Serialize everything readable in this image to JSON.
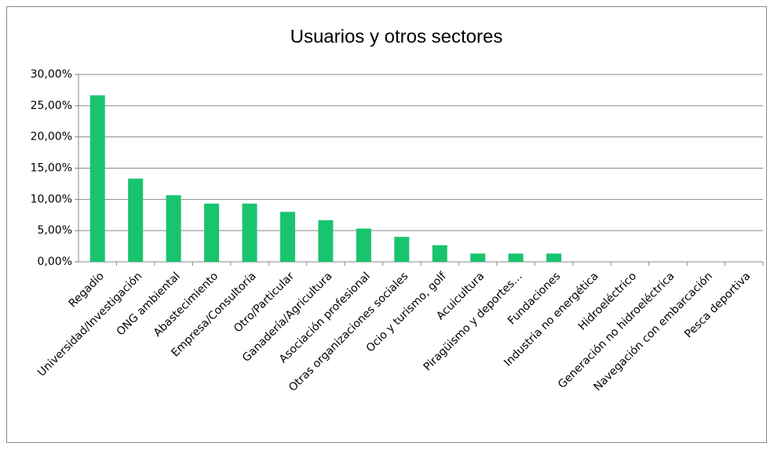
{
  "chart_data": {
    "type": "bar",
    "title": "Usuarios y otros sectores",
    "categories": [
      "Regadío",
      "Universidad/Investigación",
      "ONG ambiental",
      "Abastecimiento",
      "Empresa/Consultoría",
      "Otro/Particular",
      "Ganadería/Agricultura",
      "Asociación profesional",
      "Otras organizaciones sociales",
      "Ocio y turismo, golf",
      "Acuicultura",
      "Piragüismo y deportes…",
      "Fundaciones",
      "Industria no energética",
      "Hidroeléctrico",
      "Generación no hidroeléctrica",
      "Navegación con embarcación",
      "Pesca deportiva"
    ],
    "values": [
      26.67,
      13.33,
      10.67,
      9.33,
      9.33,
      8.0,
      6.67,
      5.33,
      4.0,
      2.67,
      1.33,
      1.33,
      1.33,
      0,
      0,
      0,
      0,
      0
    ],
    "color": "#19c46e",
    "ylim": [
      0,
      30
    ],
    "yticks": [
      {
        "value": 0,
        "label": "0,00%"
      },
      {
        "value": 5,
        "label": "5,00%"
      },
      {
        "value": 10,
        "label": "10,00%"
      },
      {
        "value": 15,
        "label": "15,00%"
      },
      {
        "value": 20,
        "label": "20,00%"
      },
      {
        "value": 25,
        "label": "25,00%"
      },
      {
        "value": 30,
        "label": "30,00%"
      }
    ],
    "grid": true
  }
}
